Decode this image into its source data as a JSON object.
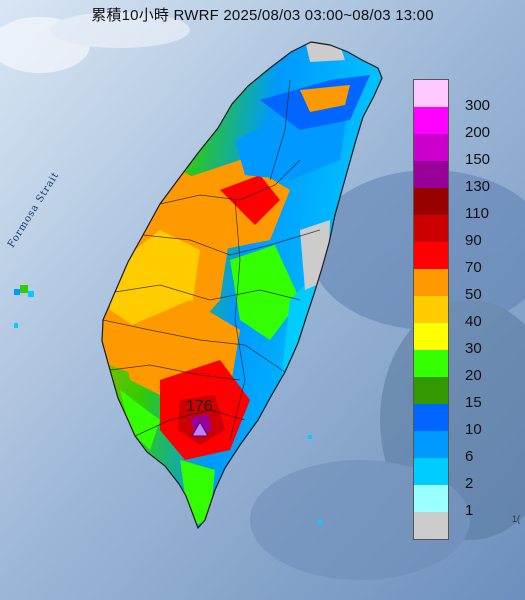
{
  "map": {
    "title": "累積10小時 RWRF 2025/08/03 03:00~08/03 13:00",
    "sea_label": "Formosa Strait",
    "edge_mark": "1("
  },
  "max_point": {
    "value": "176",
    "marker": "purple-triangle"
  },
  "legend": {
    "labels": [
      "300",
      "200",
      "150",
      "130",
      "110",
      "90",
      "70",
      "50",
      "40",
      "30",
      "20",
      "15",
      "10",
      "6",
      "2",
      "1"
    ],
    "colors": [
      "#ffc8ff",
      "#ff00ff",
      "#cc00cc",
      "#990099",
      "#990000",
      "#cc0000",
      "#ff0000",
      "#ff9900",
      "#ffcc00",
      "#ffff00",
      "#33ff00",
      "#339900",
      "#0066ff",
      "#0099ff",
      "#00ccff",
      "#99ffff",
      "#cccccc"
    ]
  }
}
